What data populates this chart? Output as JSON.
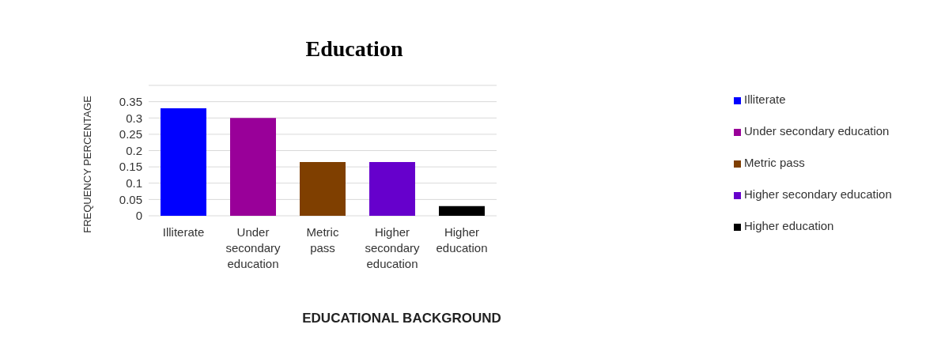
{
  "chart_data": {
    "type": "bar",
    "title": "Education",
    "xlabel": "EDUCATIONAL BACKGROUND",
    "ylabel": "FREQUENCY PERCENTAGE",
    "categories": [
      "Illiterate",
      "Under secondary education",
      "Metric pass",
      "Higher secondary education",
      "Higher education"
    ],
    "series": [
      {
        "name": "Illiterate",
        "color": "#0000ff",
        "values": [
          0.33,
          null,
          null,
          null,
          null
        ]
      },
      {
        "name": "Under secondary education",
        "color": "#990099",
        "values": [
          null,
          0.3,
          null,
          null,
          null
        ]
      },
      {
        "name": "Metric pass",
        "color": "#7f3f00",
        "values": [
          null,
          null,
          0.165,
          null,
          null
        ]
      },
      {
        "name": "Higher secondary education",
        "color": "#6600cc",
        "values": [
          null,
          null,
          null,
          0.165,
          null
        ]
      },
      {
        "name": "Higher education",
        "color": "#000000",
        "values": [
          null,
          null,
          null,
          null,
          0.03
        ]
      }
    ],
    "stacked": true,
    "ylim": [
      0,
      0.4
    ],
    "yticks": [
      0,
      0.05,
      0.1,
      0.15,
      0.2,
      0.25,
      0.3,
      0.35,
      {
        "value": 0.4,
        "label": null
      }
    ],
    "grid": "y",
    "legend": "right"
  }
}
